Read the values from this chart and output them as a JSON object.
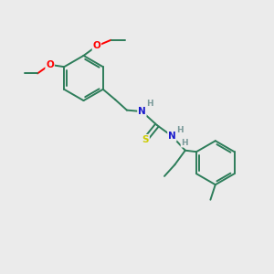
{
  "background_color": "#ebebeb",
  "bond_color": "#2d7d5a",
  "atom_colors": {
    "O": "#ff0000",
    "N": "#1a1acc",
    "S": "#cccc00",
    "H": "#7a9a9a",
    "C": "#2d7d5a"
  },
  "figsize": [
    3.0,
    3.0
  ],
  "dpi": 100
}
